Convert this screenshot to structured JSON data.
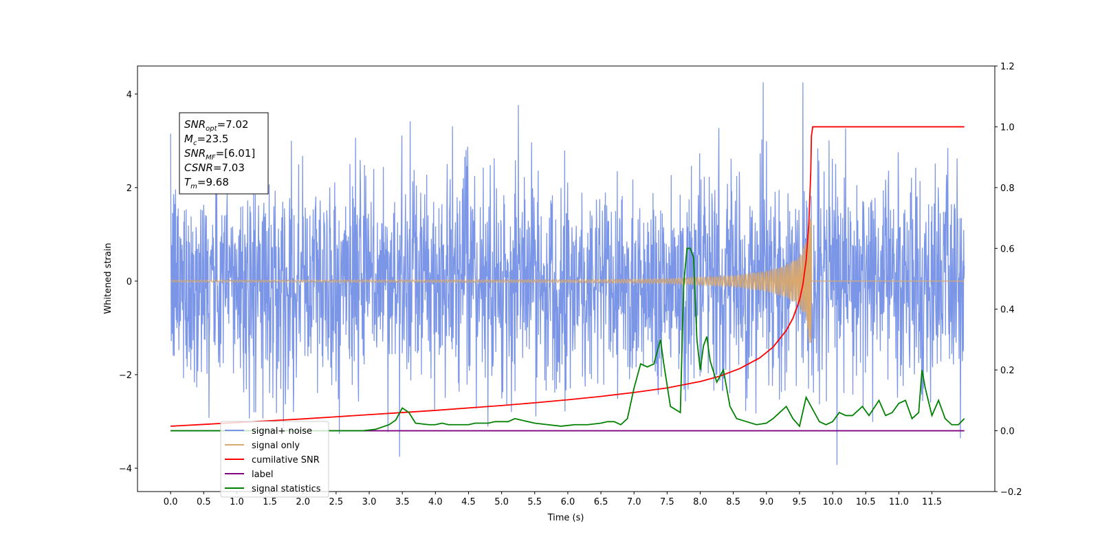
{
  "chart_data": {
    "type": "line",
    "title": "",
    "xlabel": "Time (s)",
    "ylabel_left": "Whitened strain",
    "ylabel_right": "",
    "xlim": [
      -0.5,
      12.45
    ],
    "ylim_left": [
      -4.5,
      4.6
    ],
    "ylim_right": [
      -0.2,
      1.2
    ],
    "grid": false,
    "x_ticks": [
      0.0,
      0.5,
      1.0,
      1.5,
      2.0,
      2.5,
      3.0,
      3.5,
      4.0,
      4.5,
      5.0,
      5.5,
      6.0,
      6.5,
      7.0,
      7.5,
      8.0,
      8.5,
      9.0,
      9.5,
      10.0,
      10.5,
      11.0,
      11.5
    ],
    "x_tick_labels": [
      "0.0",
      "0.5",
      "1.0",
      "1.5",
      "2.0",
      "2.5",
      "3.0",
      "3.5",
      "4.0",
      "4.5",
      "5.0",
      "5.5",
      "6.0",
      "6.5",
      "7.0",
      "7.5",
      "8.0",
      "8.5",
      "9.0",
      "9.5",
      "10.0",
      "10.5",
      "11.0",
      "11.5"
    ],
    "y_ticks_left": [
      -4,
      -2,
      0,
      2,
      4
    ],
    "y_tick_labels_left": [
      "−4",
      "−2",
      "0",
      "2",
      "4"
    ],
    "y_ticks_right": [
      -0.2,
      0.0,
      0.2,
      0.4,
      0.6,
      0.8,
      1.0,
      1.2
    ],
    "y_tick_labels_right": [
      "−0.2",
      "0.0",
      "0.2",
      "0.4",
      "0.6",
      "0.8",
      "1.0",
      "1.2"
    ],
    "legend": {
      "placement": "lower-left",
      "entries": [
        "signal+ noise",
        "signal only",
        "cumilative SNR",
        "label",
        "signal statistics"
      ]
    },
    "annotation": {
      "lines": [
        {
          "sym": "SNR",
          "sub": "opt",
          "rest": "=7.02"
        },
        {
          "sym": "M",
          "sub": "c",
          "rest": "=23.5"
        },
        {
          "sym": "SNR",
          "sub": "MF",
          "rest": "=[6.01]"
        },
        {
          "sym": "CSNR",
          "sub": "",
          "rest": "=7.03"
        },
        {
          "sym": "T",
          "sub": "m",
          "rest": "=9.68"
        }
      ]
    },
    "series": [
      {
        "name": "signal+ noise",
        "axis": "left",
        "color": "#7590e6",
        "kind": "noise",
        "x_range": [
          0.0,
          11.99
        ],
        "envelope_typical": [
          -2.5,
          2.5
        ],
        "envelope_extreme": [
          -4.0,
          4.25
        ]
      },
      {
        "name": "signal only",
        "axis": "left",
        "color": "#d8a86e",
        "kind": "chirp",
        "x_range": [
          0.0,
          11.99
        ],
        "merger_time": 9.68,
        "amplitude_points": [
          [
            0.0,
            0.02
          ],
          [
            6.0,
            0.03
          ],
          [
            7.5,
            0.05
          ],
          [
            8.5,
            0.12
          ],
          [
            9.0,
            0.22
          ],
          [
            9.3,
            0.35
          ],
          [
            9.5,
            0.55
          ],
          [
            9.6,
            0.85
          ],
          [
            9.68,
            1.6
          ]
        ]
      },
      {
        "name": "cumilative SNR",
        "axis": "right",
        "color": "#ff0000",
        "x": [
          0.0,
          0.5,
          1.0,
          1.5,
          2.0,
          2.5,
          3.0,
          3.5,
          4.0,
          4.5,
          5.0,
          5.5,
          6.0,
          6.5,
          7.0,
          7.5,
          8.0,
          8.3,
          8.6,
          8.9,
          9.1,
          9.3,
          9.4,
          9.5,
          9.55,
          9.6,
          9.64,
          9.67,
          9.68,
          9.7,
          11.99
        ],
        "values": [
          0.015,
          0.021,
          0.027,
          0.033,
          0.039,
          0.046,
          0.053,
          0.06,
          0.067,
          0.075,
          0.083,
          0.092,
          0.102,
          0.113,
          0.126,
          0.141,
          0.162,
          0.18,
          0.205,
          0.24,
          0.275,
          0.33,
          0.37,
          0.43,
          0.48,
          0.56,
          0.68,
          0.85,
          0.97,
          1.0,
          1.0
        ]
      },
      {
        "name": "label",
        "axis": "right",
        "color": "#800080",
        "x": [
          0.0,
          11.99
        ],
        "values": [
          0.0,
          0.0
        ]
      },
      {
        "name": "signal statistics",
        "axis": "right",
        "color": "#008000",
        "x": [
          0.0,
          2.9,
          3.1,
          3.3,
          3.4,
          3.5,
          3.6,
          3.7,
          3.9,
          4.0,
          4.1,
          4.2,
          4.3,
          4.4,
          4.5,
          4.6,
          4.8,
          4.9,
          5.1,
          5.2,
          5.3,
          5.5,
          5.7,
          5.9,
          6.1,
          6.3,
          6.5,
          6.6,
          6.7,
          6.8,
          6.9,
          7.0,
          7.1,
          7.2,
          7.3,
          7.4,
          7.45,
          7.55,
          7.7,
          7.75,
          7.8,
          7.85,
          7.9,
          7.95,
          8.0,
          8.05,
          8.1,
          8.15,
          8.25,
          8.35,
          8.45,
          8.55,
          8.7,
          8.85,
          9.0,
          9.1,
          9.2,
          9.3,
          9.4,
          9.5,
          9.6,
          9.7,
          9.8,
          9.9,
          10.0,
          10.1,
          10.2,
          10.3,
          10.45,
          10.55,
          10.7,
          10.8,
          10.9,
          11.0,
          11.1,
          11.2,
          11.3,
          11.35,
          11.4,
          11.5,
          11.6,
          11.7,
          11.8,
          11.9,
          11.99
        ],
        "values": [
          0.0,
          0.0,
          0.005,
          0.02,
          0.035,
          0.075,
          0.06,
          0.025,
          0.02,
          0.02,
          0.025,
          0.02,
          0.02,
          0.02,
          0.02,
          0.025,
          0.025,
          0.03,
          0.03,
          0.04,
          0.035,
          0.025,
          0.02,
          0.015,
          0.02,
          0.02,
          0.025,
          0.03,
          0.03,
          0.02,
          0.04,
          0.14,
          0.22,
          0.21,
          0.22,
          0.3,
          0.22,
          0.08,
          0.06,
          0.48,
          0.6,
          0.6,
          0.57,
          0.3,
          0.2,
          0.28,
          0.31,
          0.23,
          0.16,
          0.2,
          0.08,
          0.04,
          0.03,
          0.02,
          0.025,
          0.04,
          0.06,
          0.08,
          0.04,
          0.015,
          0.11,
          0.07,
          0.03,
          0.02,
          0.03,
          0.06,
          0.05,
          0.05,
          0.08,
          0.05,
          0.1,
          0.05,
          0.06,
          0.09,
          0.1,
          0.04,
          0.06,
          0.2,
          0.14,
          0.05,
          0.1,
          0.04,
          0.02,
          0.02,
          0.04
        ]
      }
    ]
  }
}
